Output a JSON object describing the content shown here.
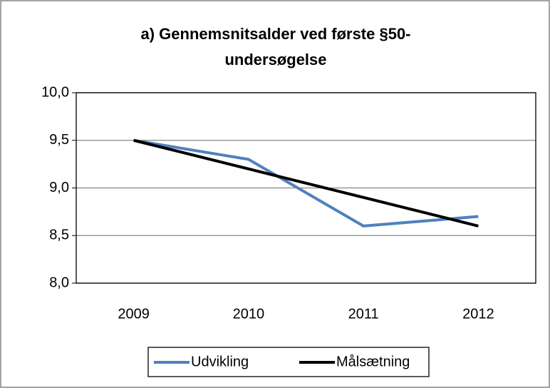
{
  "chart_data": {
    "type": "line",
    "title": "a) Gennemsnitsalder ved første §50-undersøgelse",
    "categories": [
      "2009",
      "2010",
      "2011",
      "2012"
    ],
    "series": [
      {
        "name": "Udvikling",
        "color": "#4f81bd",
        "values": [
          9.5,
          9.3,
          8.6,
          8.7
        ]
      },
      {
        "name": "Målsætning",
        "color": "#000000",
        "values": [
          9.5,
          9.2,
          8.9,
          8.6
        ]
      }
    ],
    "ylim": [
      8,
      10
    ],
    "yticks": [
      {
        "value": 8,
        "label": "8,0"
      },
      {
        "value": 8.5,
        "label": "8,5"
      },
      {
        "value": 9,
        "label": "9,0"
      },
      {
        "value": 9.5,
        "label": "9,5"
      },
      {
        "value": 10,
        "label": "10,0"
      }
    ],
    "grid": true,
    "legend": "bottom"
  }
}
